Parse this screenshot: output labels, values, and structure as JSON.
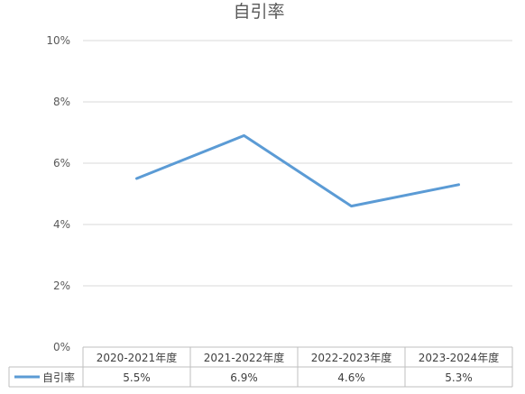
{
  "chart_data": {
    "type": "line",
    "title": "自引率",
    "categories": [
      "2020-2021年度",
      "2021-2022年度",
      "2022-2023年度",
      "2023-2024年度"
    ],
    "series": [
      {
        "name": "自引率",
        "values": [
          5.5,
          6.9,
          4.6,
          5.3
        ],
        "labels": [
          "5.5%",
          "6.9%",
          "4.6%",
          "5.3%"
        ],
        "color": "#5b9bd5"
      }
    ],
    "y_ticks": [
      "0%",
      "2%",
      "4%",
      "6%",
      "8%",
      "10%"
    ],
    "ylim": [
      0,
      10
    ],
    "y_unit": "%",
    "grid": true,
    "legend": "data-table"
  }
}
